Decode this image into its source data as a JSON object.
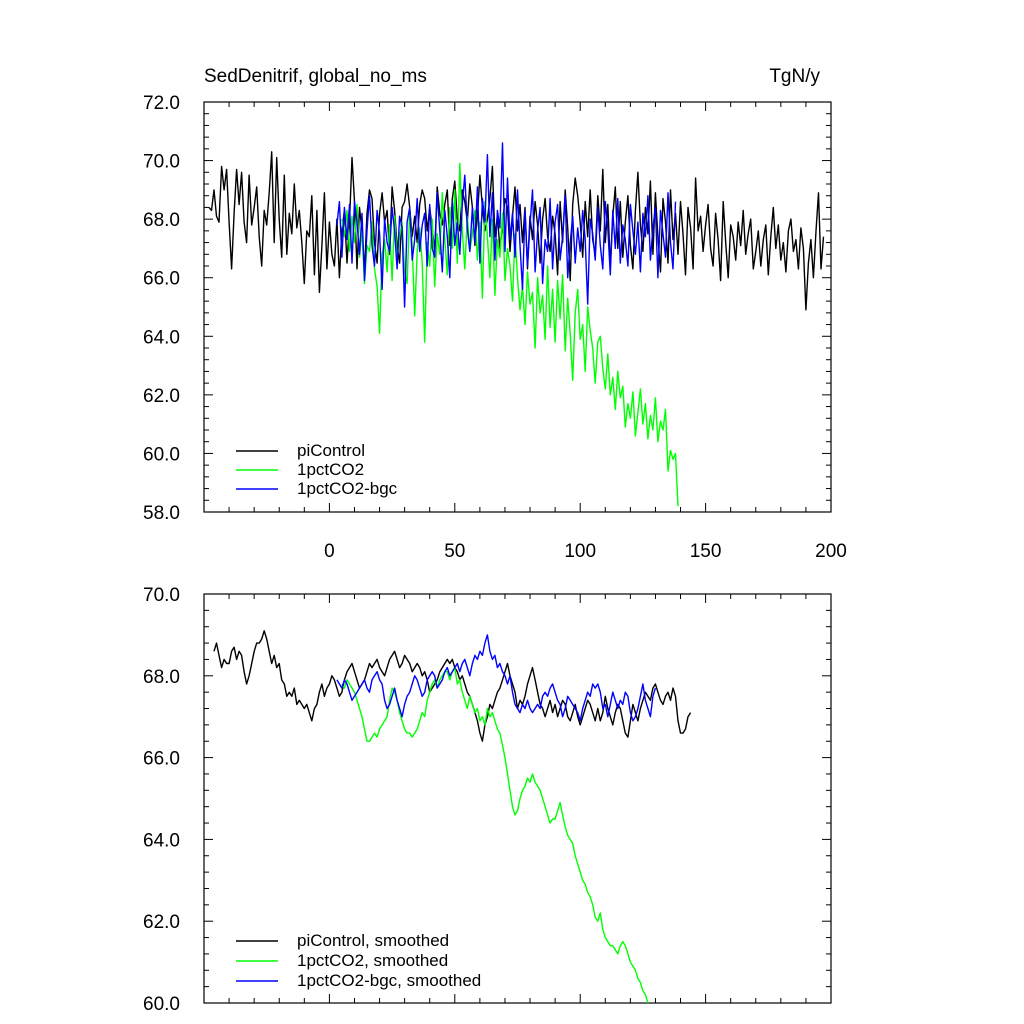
{
  "title_left": "SedDenitrif, global_no_ms",
  "title_right": "TgN/y",
  "colors": {
    "piControl": "#000000",
    "1pctCO2": "#00ff00",
    "1pctCO2-bgc": "#0000ff"
  },
  "chart_data": [
    {
      "type": "line",
      "title": "SedDenitrif, global_no_ms",
      "units": "TgN/y",
      "xlim": [
        -50,
        200
      ],
      "ylim": [
        58,
        72
      ],
      "xticks": [
        0,
        50,
        100,
        150,
        200
      ],
      "xtick_labels": [
        "0",
        "50",
        "100",
        "150",
        "200"
      ],
      "yticks": [
        58,
        60,
        62,
        64,
        66,
        68,
        70,
        72
      ],
      "ytick_labels": [
        "58.0",
        "60.0",
        "62.0",
        "64.0",
        "66.0",
        "68.0",
        "70.0",
        "72.0"
      ],
      "legend": "bottom-left",
      "series": [
        {
          "name": "piControl",
          "color": "#000000",
          "x_start": -48,
          "x_step": 1,
          "values": [
            68.4,
            68.3,
            69.0,
            68.1,
            67.9,
            69.8,
            69.0,
            69.7,
            67.9,
            66.3,
            68.2,
            69.7,
            68.5,
            69.6,
            67.9,
            67.2,
            69.5,
            67.8,
            68.4,
            69.1,
            67.4,
            66.4,
            68.3,
            67.8,
            68.9,
            70.3,
            67.2,
            70.1,
            68.0,
            66.7,
            69.5,
            66.8,
            68.2,
            67.5,
            69.2,
            67.7,
            68.3,
            67.2,
            65.8,
            67.6,
            67.4,
            68.8,
            66.1,
            68.3,
            65.5,
            67.1,
            68.9,
            66.3,
            67.9,
            66.8,
            66.4,
            68.0,
            66.0,
            67.6,
            68.3,
            66.5,
            67.9,
            70.1,
            68.6,
            66.3,
            68.4,
            67.6,
            66.2,
            68.2,
            69.0,
            68.7,
            67.2,
            66.5,
            68.2,
            68.9,
            67.9,
            68.3,
            66.8,
            69.1,
            68.3,
            67.1,
            66.5,
            68.4,
            68.6,
            69.2,
            68.4,
            67.4,
            68.1,
            67.2,
            68.5,
            69.0,
            68.7,
            67.6,
            68.4,
            67.7,
            66.9,
            69.1,
            68.2,
            67.8,
            68.5,
            69.0,
            67.1,
            68.7,
            69.3,
            68.0,
            67.6,
            69.0,
            68.6,
            67.9,
            69.2,
            68.4,
            67.1,
            68.1,
            69.5,
            68.4,
            67.6,
            68.0,
            68.7,
            69.8,
            67.4,
            68.1,
            67.0,
            67.8,
            68.7,
            68.4,
            66.9,
            68.1,
            69.1,
            67.6,
            68.5,
            67.2,
            68.4,
            66.3,
            68.1,
            67.3,
            68.6,
            67.8,
            66.5,
            68.0,
            68.7,
            67.4,
            66.9,
            68.1,
            67.5,
            66.1,
            68.6,
            67.2,
            69.0,
            67.7,
            65.9,
            68.5,
            69.4,
            68.8,
            67.9,
            66.7,
            68.6,
            67.4,
            69.0,
            67.3,
            66.8,
            68.8,
            67.6,
            69.7,
            67.2,
            68.5,
            66.4,
            68.1,
            69.1,
            67.0,
            68.6,
            66.7,
            67.9,
            68.8,
            67.1,
            66.3,
            68.3,
            69.6,
            67.8,
            66.9,
            68.4,
            67.5,
            69.3,
            66.8,
            68.9,
            67.4,
            66.2,
            68.7,
            67.9,
            66.5,
            69.0,
            67.3,
            68.2,
            66.8,
            68.6,
            67.5,
            66.1,
            68.4,
            67.7,
            66.3,
            69.4,
            67.6,
            68.1,
            66.9,
            67.8,
            68.5,
            67.0,
            66.4,
            68.2,
            67.3,
            65.9,
            68.6,
            67.2,
            66.0,
            67.8,
            67.4,
            66.6,
            67.9,
            67.1,
            68.3,
            66.8,
            67.5,
            68.0,
            66.3,
            66.9,
            67.6,
            66.4,
            67.3,
            67.8,
            66.1,
            67.4,
            68.4,
            67.0,
            67.8,
            66.6,
            67.2,
            66.2,
            67.6,
            68.0,
            66.9,
            67.3,
            66.3,
            67.7,
            67.0,
            64.9,
            66.5,
            67.3,
            66.0,
            67.6,
            68.9,
            66.3,
            67.4
          ]
        },
        {
          "name": "1pctCO2",
          "color": "#00ff00",
          "x_start": 5,
          "x_step": 1,
          "values": [
            68.0,
            67.4,
            68.3,
            66.9,
            68.1,
            67.2,
            68.5,
            66.7,
            67.6,
            65.8,
            67.1,
            66.9,
            67.9,
            66.3,
            65.7,
            64.1,
            66.8,
            67.3,
            66.2,
            67.8,
            65.9,
            68.1,
            66.6,
            67.4,
            67.9,
            66.2,
            65.8,
            68.3,
            67.1,
            64.7,
            66.9,
            67.7,
            66.5,
            63.8,
            67.2,
            66.4,
            68.0,
            65.7,
            67.5,
            66.8,
            68.9,
            67.3,
            66.1,
            68.4,
            67.0,
            69.0,
            66.5,
            69.9,
            67.6,
            66.3,
            68.1,
            66.9,
            67.5,
            68.3,
            66.6,
            67.9,
            65.3,
            68.6,
            67.4,
            66.0,
            68.0,
            65.4,
            67.3,
            66.7,
            68.2,
            65.9,
            67.0,
            66.4,
            65.2,
            67.5,
            66.0,
            64.9,
            65.7,
            64.4,
            66.2,
            65.1,
            65.5,
            63.6,
            66.0,
            64.8,
            65.4,
            63.9,
            66.4,
            64.3,
            65.6,
            63.8,
            65.9,
            64.6,
            66.1,
            63.5,
            65.3,
            64.1,
            62.5,
            64.8,
            65.6,
            63.9,
            64.4,
            62.8,
            65.0,
            64.2,
            63.6,
            62.4,
            63.8,
            64.0,
            62.9,
            62.2,
            63.4,
            62.0,
            62.6,
            61.5,
            62.8,
            61.9,
            62.3,
            60.9,
            61.7,
            61.2,
            62.1,
            60.6,
            61.4,
            62.2,
            61.0,
            61.7,
            60.5,
            61.3,
            60.8,
            61.9,
            60.4,
            61.1,
            60.8,
            61.5,
            59.4,
            60.1,
            59.8,
            60.0,
            58.2
          ]
        },
        {
          "name": "1pctCO2-bgc",
          "color": "#0000ff",
          "x_start": 3,
          "x_step": 1,
          "values": [
            67.8,
            68.6,
            66.7,
            68.4,
            67.3,
            68.5,
            66.5,
            68.6,
            67.9,
            66.8,
            68.2,
            65.9,
            67.6,
            68.8,
            67.1,
            66.4,
            68.3,
            67.5,
            65.6,
            68.0,
            67.2,
            66.9,
            68.4,
            67.6,
            66.3,
            68.1,
            67.7,
            65.0,
            67.9,
            68.4,
            66.6,
            67.3,
            68.7,
            66.9,
            67.8,
            68.2,
            66.4,
            68.5,
            67.0,
            66.7,
            68.9,
            67.6,
            66.2,
            68.3,
            67.4,
            66.0,
            68.6,
            67.1,
            67.9,
            66.8,
            68.5,
            69.5,
            67.7,
            66.9,
            68.4,
            67.2,
            69.1,
            66.5,
            68.7,
            67.9,
            70.2,
            67.4,
            68.9,
            66.6,
            68.3,
            67.7,
            70.6,
            66.9,
            69.4,
            67.3,
            68.2,
            66.7,
            69.0,
            67.1,
            65.6,
            68.3,
            66.4,
            67.8,
            69.0,
            66.2,
            67.6,
            68.4,
            65.8,
            67.3,
            66.9,
            68.7,
            66.3,
            67.9,
            68.5,
            66.6,
            67.4,
            68.8,
            66.0,
            67.2,
            68.1,
            66.5,
            67.7,
            66.9,
            68.3,
            67.3,
            65.1,
            68.0,
            67.5,
            66.6,
            68.4,
            67.1,
            66.3,
            68.6,
            67.7,
            66.1,
            68.3,
            67.0,
            68.7,
            66.5,
            67.8,
            67.3,
            66.4,
            68.5,
            67.6,
            66.8,
            67.9,
            66.2,
            68.2,
            67.4,
            68.8,
            66.6,
            67.7,
            68.4,
            66.0,
            68.3,
            67.5,
            66.7,
            68.9,
            67.2,
            66.3,
            68.6
          ]
        }
      ]
    },
    {
      "type": "line",
      "title": "",
      "xlim": [
        -50,
        200
      ],
      "ylim": [
        60,
        70
      ],
      "xticks": [
        0,
        50,
        100,
        150,
        200
      ],
      "yticks": [
        60,
        62,
        64,
        66,
        68,
        70
      ],
      "ytick_labels": [
        "60.0",
        "62.0",
        "64.0",
        "66.0",
        "68.0",
        "70.0"
      ],
      "legend": "bottom-left",
      "series": [
        {
          "name": "piControl, smoothed",
          "color": "#000000",
          "x_start": -46,
          "x_step": 1,
          "values": [
            68.6,
            68.8,
            68.5,
            68.2,
            68.4,
            68.3,
            68.3,
            68.6,
            68.7,
            68.4,
            68.6,
            68.5,
            68.1,
            67.8,
            68.0,
            68.3,
            68.6,
            68.8,
            68.8,
            68.9,
            69.1,
            68.9,
            68.6,
            68.3,
            68.5,
            68.2,
            68.3,
            67.9,
            67.8,
            67.5,
            67.6,
            67.5,
            67.7,
            67.3,
            67.4,
            67.3,
            67.2,
            67.3,
            67.1,
            66.9,
            67.2,
            67.3,
            67.6,
            67.8,
            67.5,
            67.7,
            67.8,
            68.0,
            67.9,
            67.7,
            67.5,
            67.6,
            67.9,
            68.1,
            68.2,
            68.3,
            68.1,
            67.9,
            67.7,
            67.8,
            67.9,
            68.1,
            68.3,
            68.2,
            68.3,
            68.4,
            68.2,
            68.1,
            68.0,
            68.2,
            68.4,
            68.5,
            68.6,
            68.4,
            68.2,
            68.3,
            68.5,
            68.4,
            68.3,
            68.1,
            68.2,
            68.3,
            68.2,
            68.0,
            68.1,
            67.9,
            67.6,
            67.7,
            67.8,
            67.9,
            68.1,
            68.2,
            68.3,
            68.4,
            68.3,
            68.4,
            68.2,
            68.1,
            67.9,
            68.0,
            67.8,
            67.6,
            67.5,
            67.3,
            67.1,
            66.9,
            66.6,
            66.4,
            66.8,
            67.0,
            67.3,
            67.2,
            67.4,
            67.6,
            67.7,
            67.9,
            68.1,
            68.3,
            68.0,
            67.8,
            67.6,
            67.2,
            67.4,
            67.3,
            67.5,
            67.8,
            68.0,
            68.2,
            67.9,
            67.6,
            67.3,
            67.2,
            67.0,
            67.2,
            67.4,
            67.1,
            67.3,
            67.0,
            67.2,
            67.4,
            67.3,
            67.0,
            66.9,
            67.1,
            67.3,
            67.0,
            66.8,
            67.0,
            67.2,
            67.4,
            67.3,
            67.1,
            66.9,
            67.2,
            66.9,
            67.1,
            67.5,
            67.2,
            67.0,
            66.8,
            67.1,
            67.3,
            67.2,
            66.9,
            66.6,
            66.5,
            66.9,
            67.3,
            67.1,
            66.9,
            67.2,
            67.4,
            67.6,
            67.5,
            67.4,
            67.7,
            67.8,
            67.6,
            67.4,
            67.3,
            67.5,
            67.6,
            67.4,
            67.7,
            67.5,
            66.9,
            66.6,
            66.6,
            66.7,
            67.0,
            67.1
          ]
        },
        {
          "name": "1pctCO2, smoothed",
          "color": "#00ff00",
          "x_start": 5,
          "x_step": 1,
          "values": [
            67.8,
            67.7,
            67.9,
            67.8,
            67.7,
            67.6,
            67.4,
            67.2,
            67.0,
            66.7,
            66.4,
            66.4,
            66.5,
            66.6,
            66.5,
            66.7,
            66.8,
            66.9,
            67.0,
            67.4,
            67.7,
            67.6,
            67.4,
            67.1,
            66.9,
            66.7,
            66.6,
            66.6,
            66.5,
            66.6,
            66.7,
            66.9,
            67.1,
            67.0,
            67.4,
            67.6,
            67.8,
            67.9,
            67.7,
            67.9,
            68.0,
            68.1,
            68.1,
            67.9,
            68.1,
            68.2,
            67.8,
            67.9,
            67.6,
            67.4,
            67.2,
            67.5,
            67.3,
            67.1,
            67.2,
            66.9,
            67.0,
            66.8,
            67.2,
            67.0,
            67.1,
            66.9,
            66.7,
            66.6,
            66.3,
            66.0,
            65.6,
            65.2,
            64.8,
            64.6,
            64.7,
            65.0,
            65.2,
            65.3,
            65.5,
            65.4,
            65.6,
            65.4,
            65.3,
            65.2,
            65.0,
            64.8,
            64.6,
            64.4,
            64.5,
            64.5,
            64.7,
            64.9,
            64.6,
            64.3,
            64.1,
            64.0,
            63.9,
            63.6,
            63.4,
            63.2,
            63.0,
            62.9,
            62.7,
            62.6,
            62.4,
            62.1,
            62.0,
            62.2,
            61.8,
            61.6,
            61.5,
            61.4,
            61.4,
            61.3,
            61.2,
            61.4,
            61.5,
            61.4,
            61.2,
            61.0,
            60.9,
            60.8,
            60.6,
            60.5,
            60.3,
            60.2,
            60.0
          ]
        },
        {
          "name": "1pctCO2-bgc, smoothed",
          "color": "#0000ff",
          "x_start": 3,
          "x_step": 1,
          "values": [
            67.9,
            67.8,
            67.7,
            67.9,
            67.8,
            67.6,
            67.4,
            67.5,
            67.6,
            67.7,
            67.8,
            67.9,
            67.7,
            67.6,
            67.9,
            68.0,
            68.1,
            67.9,
            67.8,
            67.4,
            67.2,
            67.3,
            67.5,
            67.7,
            67.4,
            67.2,
            67.0,
            67.3,
            67.5,
            67.6,
            67.8,
            68.0,
            67.9,
            67.7,
            67.5,
            67.6,
            67.9,
            68.0,
            68.1,
            68.0,
            67.7,
            67.8,
            67.9,
            68.1,
            68.2,
            68.0,
            68.1,
            68.2,
            68.3,
            68.1,
            68.3,
            68.4,
            68.2,
            68.0,
            68.3,
            68.5,
            68.4,
            68.6,
            68.5,
            68.8,
            69.0,
            68.6,
            68.4,
            68.5,
            68.2,
            68.3,
            68.1,
            68.0,
            67.8,
            68.0,
            67.6,
            67.3,
            67.2,
            67.1,
            67.3,
            67.2,
            67.4,
            67.2,
            67.1,
            67.2,
            67.3,
            67.2,
            67.5,
            67.6,
            67.5,
            67.7,
            67.8,
            67.6,
            67.4,
            67.3,
            67.0,
            67.2,
            67.5,
            67.4,
            67.3,
            67.2,
            67.1,
            66.9,
            67.2,
            67.4,
            67.6,
            67.5,
            67.8,
            67.7,
            67.8,
            67.6,
            67.2,
            67.3,
            67.0,
            67.3,
            67.6,
            67.4,
            67.2,
            67.4,
            67.3,
            67.6,
            67.5,
            67.1,
            66.9,
            67.0,
            67.2,
            67.5,
            67.8,
            67.4,
            67.2,
            67.0,
            67.5,
            67.7
          ]
        }
      ]
    }
  ]
}
